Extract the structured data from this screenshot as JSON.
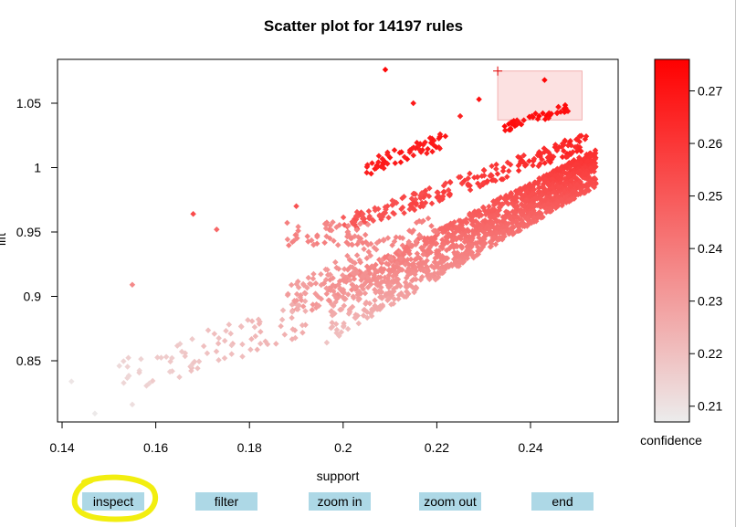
{
  "chart_data": {
    "type": "scatter",
    "title": "Scatter plot for 14197 rules",
    "xlabel": "support",
    "ylabel": "lift",
    "xlim": [
      0.14,
      0.255
    ],
    "ylim": [
      0.8,
      1.08
    ],
    "x_ticks": [
      "0.14",
      "0.16",
      "0.18",
      "0.2",
      "0.22",
      "0.24"
    ],
    "y_ticks": [
      "0.85",
      "0.9",
      "0.95",
      "1",
      "1.05"
    ],
    "colorbar": {
      "label": "confidence",
      "range": [
        0.207,
        0.276
      ],
      "ticks": [
        "0.21",
        "0.22",
        "0.23",
        "0.24",
        "0.25",
        "0.26",
        "0.27"
      ],
      "color_low": "#ececec",
      "color_high": "#ff0000"
    },
    "selection": {
      "x_range": [
        0.233,
        0.251
      ],
      "y_range": [
        1.037,
        1.075
      ],
      "fill": "#f9c8c8"
    },
    "cursor_marker": {
      "x": 0.233,
      "y": 1.075
    },
    "grid": false,
    "legend": "colorbar right"
  },
  "buttons": {
    "inspect": "inspect",
    "filter": "filter",
    "zoom_in": "zoom in",
    "zoom_out": "zoom out",
    "end": "end"
  },
  "annotation_color": "#f2ee10"
}
